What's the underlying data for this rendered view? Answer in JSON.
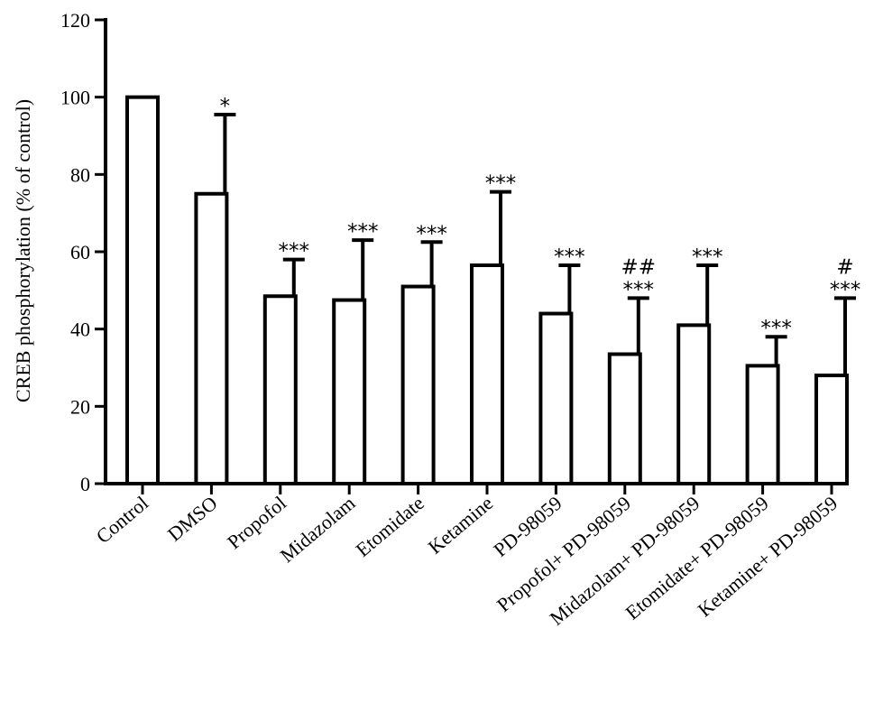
{
  "chart_data": {
    "type": "bar",
    "title": "",
    "xlabel": "",
    "ylabel": "CREB phosphorylation (% of control)",
    "ylim": [
      0,
      120
    ],
    "yticks": [
      0,
      20,
      40,
      60,
      80,
      100,
      120
    ],
    "grid": false,
    "legend": "none",
    "categories": [
      "Control",
      "DMSO",
      "Propofol",
      "Midazolam",
      "Etomidate",
      "Ketamine",
      "PD-98059",
      "Propofol+ PD-98059",
      "Midazolam+ PD-98059",
      "Etomidate+ PD-98059",
      "Ketamine+ PD-98059"
    ],
    "values": [
      100,
      75,
      48.5,
      47.5,
      51,
      56.5,
      44,
      33.5,
      41,
      30.5,
      28
    ],
    "error": [
      0,
      20.5,
      9.5,
      15.5,
      11.5,
      19,
      12.5,
      14.5,
      15.5,
      7.5,
      20
    ],
    "significance": [
      "",
      "*",
      "***",
      "***",
      "***",
      "***",
      "***",
      "***",
      "***",
      "***",
      "***"
    ],
    "significance2": [
      "",
      "",
      "",
      "",
      "",
      "",
      "",
      "##",
      "",
      "",
      "#"
    ]
  }
}
